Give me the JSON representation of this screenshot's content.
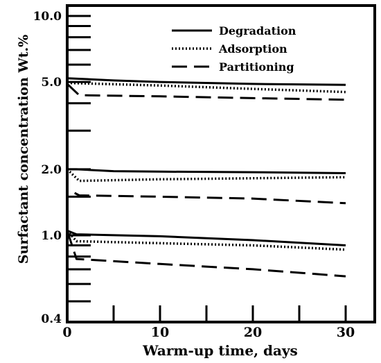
{
  "chart_data": {
    "type": "line",
    "title": "",
    "xlabel": "Warm-up time, days",
    "ylabel": "Surfactant concentration Wt.%",
    "y_scale": "log",
    "xlim": [
      0,
      33
    ],
    "ylim": [
      0.4,
      11
    ],
    "x_ticks": [
      0,
      10,
      20,
      30
    ],
    "x_tick_labels": [
      "0",
      "10",
      "20",
      "30"
    ],
    "y_ticks": [
      0.4,
      1.0,
      2.0,
      5.0,
      10.0
    ],
    "y_tick_labels": [
      "0.4",
      "1.0",
      "2.0",
      "5.0",
      "10.0"
    ],
    "y_minor_ticks": [
      0.5,
      0.6,
      0.7,
      0.8,
      0.9,
      1.5,
      3.0,
      4.0,
      6.0,
      7.0,
      8.0,
      9.0
    ],
    "x_minor_ticks": [
      5,
      15,
      25
    ],
    "legend": {
      "position": "top-right",
      "entries": [
        {
          "label": "Degradation",
          "style": "solid"
        },
        {
          "label": "Adsorption",
          "style": "dotted"
        },
        {
          "label": "Partitioning",
          "style": "dashed"
        }
      ]
    },
    "series": [
      {
        "group": "5.0",
        "style": "solid",
        "x": [
          0,
          5,
          10,
          20,
          30
        ],
        "y": [
          5.2,
          5.08,
          5.0,
          4.9,
          4.85
        ]
      },
      {
        "group": "5.0",
        "style": "dotted",
        "x": [
          0,
          10,
          20,
          30
        ],
        "y": [
          4.95,
          4.82,
          4.65,
          4.5
        ]
      },
      {
        "group": "5.0",
        "style": "dashed",
        "x": [
          0,
          1.3,
          10,
          20,
          30
        ],
        "y": [
          4.9,
          4.35,
          4.3,
          4.22,
          4.15
        ]
      },
      {
        "group": "2.0",
        "style": "solid",
        "x": [
          0,
          1,
          5,
          10,
          20,
          30
        ],
        "y": [
          2.0,
          2.0,
          1.96,
          1.95,
          1.94,
          1.92
        ]
      },
      {
        "group": "2.0",
        "style": "dotted",
        "x": [
          0,
          1.3,
          10,
          20,
          30
        ],
        "y": [
          2.0,
          1.77,
          1.8,
          1.82,
          1.84
        ]
      },
      {
        "group": "2.0",
        "style": "dashed",
        "x": [
          0.8,
          1.3,
          10,
          20,
          30
        ],
        "y": [
          1.56,
          1.52,
          1.5,
          1.47,
          1.4
        ]
      },
      {
        "group": "1.0",
        "style": "solid",
        "x": [
          0,
          1,
          10,
          20,
          30
        ],
        "y": [
          1.05,
          1.01,
          0.99,
          0.95,
          0.9
        ]
      },
      {
        "group": "1.0",
        "style": "dotted",
        "x": [
          0,
          1,
          10,
          20,
          30
        ],
        "y": [
          1.05,
          0.94,
          0.92,
          0.9,
          0.86
        ]
      },
      {
        "group": "1.0",
        "style": "dashed",
        "x": [
          0,
          1,
          10,
          20,
          30
        ],
        "y": [
          1.05,
          0.78,
          0.74,
          0.7,
          0.65
        ]
      }
    ]
  }
}
